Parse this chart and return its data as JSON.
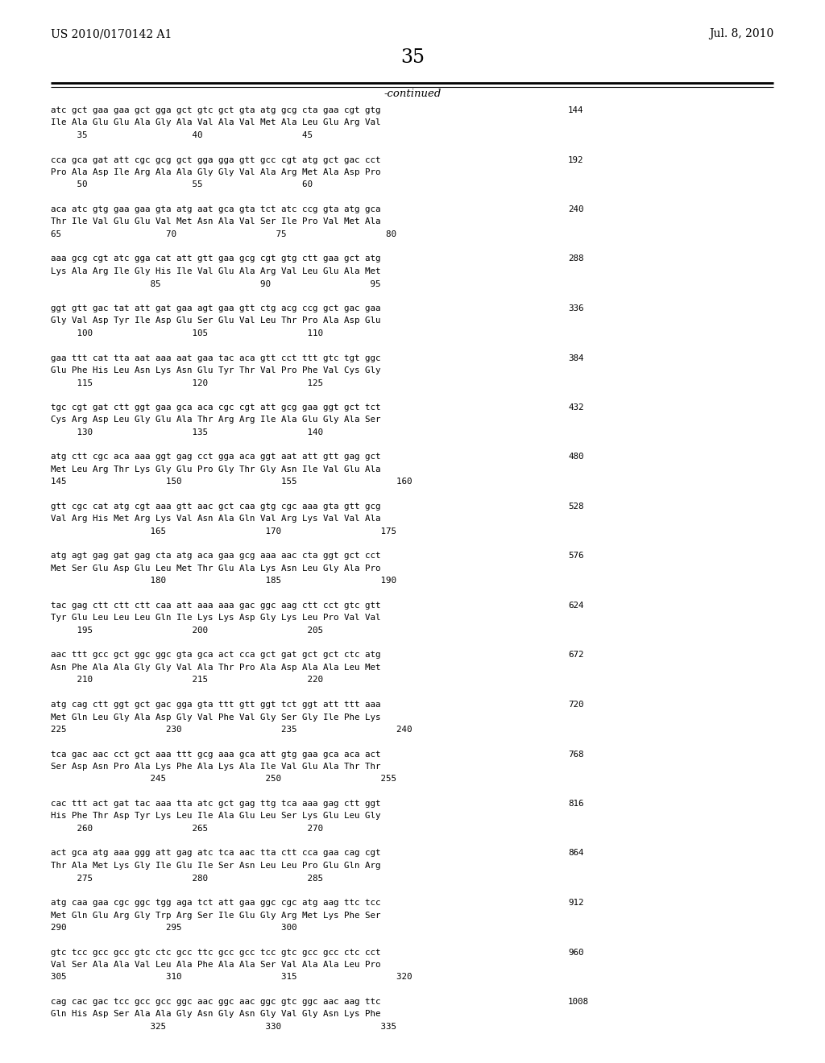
{
  "header_left": "US 2010/0170142 A1",
  "header_right": "Jul. 8, 2010",
  "page_number": "35",
  "continued_label": "-continued",
  "background_color": "#ffffff",
  "text_color": "#000000",
  "sequences": [
    {
      "dna": "atc gct gaa gaa gct gga gct gtc gct gta atg gcg cta gaa cgt gtg",
      "aa": "Ile Ala Glu Glu Ala Gly Ala Val Ala Val Met Ala Leu Glu Arg Val",
      "nums": "     35                    40                   45",
      "num_right": "144"
    },
    {
      "dna": "cca gca gat att cgc gcg gct gga gga gtt gcc cgt atg gct gac cct",
      "aa": "Pro Ala Asp Ile Arg Ala Ala Gly Gly Val Ala Arg Met Ala Asp Pro",
      "nums": "     50                    55                   60",
      "num_right": "192"
    },
    {
      "dna": "aca atc gtg gaa gaa gta atg aat gca gta tct atc ccg gta atg gca",
      "aa": "Thr Ile Val Glu Glu Val Met Asn Ala Val Ser Ile Pro Val Met Ala",
      "nums": "65                    70                   75                   80",
      "num_right": "240"
    },
    {
      "dna": "aaa gcg cgt atc gga cat att gtt gaa gcg cgt gtg ctt gaa gct atg",
      "aa": "Lys Ala Arg Ile Gly His Ile Val Glu Ala Arg Val Leu Glu Ala Met",
      "nums": "                   85                   90                   95",
      "num_right": "288"
    },
    {
      "dna": "ggt gtt gac tat att gat gaa agt gaa gtt ctg acg ccg gct gac gaa",
      "aa": "Gly Val Asp Tyr Ile Asp Glu Ser Glu Val Leu Thr Pro Ala Asp Glu",
      "nums": "     100                   105                   110",
      "num_right": "336"
    },
    {
      "dna": "gaa ttt cat tta aat aaa aat gaa tac aca gtt cct ttt gtc tgt ggc",
      "aa": "Glu Phe His Leu Asn Lys Asn Glu Tyr Thr Val Pro Phe Val Cys Gly",
      "nums": "     115                   120                   125",
      "num_right": "384"
    },
    {
      "dna": "tgc cgt gat ctt ggt gaa gca aca cgc cgt att gcg gaa ggt gct tct",
      "aa": "Cys Arg Asp Leu Gly Glu Ala Thr Arg Arg Ile Ala Glu Gly Ala Ser",
      "nums": "     130                   135                   140",
      "num_right": "432"
    },
    {
      "dna": "atg ctt cgc aca aaa ggt gag cct gga aca ggt aat att gtt gag gct",
      "aa": "Met Leu Arg Thr Lys Gly Glu Pro Gly Thr Gly Asn Ile Val Glu Ala",
      "nums": "145                   150                   155                   160",
      "num_right": "480"
    },
    {
      "dna": "gtt cgc cat atg cgt aaa gtt aac gct caa gtg cgc aaa gta gtt gcg",
      "aa": "Val Arg His Met Arg Lys Val Asn Ala Gln Val Arg Lys Val Val Ala",
      "nums": "                   165                   170                   175",
      "num_right": "528"
    },
    {
      "dna": "atg agt gag gat gag cta atg aca gaa gcg aaa aac cta ggt gct cct",
      "aa": "Met Ser Glu Asp Glu Leu Met Thr Glu Ala Lys Asn Leu Gly Ala Pro",
      "nums": "                   180                   185                   190",
      "num_right": "576"
    },
    {
      "dna": "tac gag ctt ctt ctt caa att aaa aaa gac ggc aag ctt cct gtc gtt",
      "aa": "Tyr Glu Leu Leu Leu Gln Ile Lys Lys Asp Gly Lys Leu Pro Val Val",
      "nums": "     195                   200                   205",
      "num_right": "624"
    },
    {
      "dna": "aac ttt gcc gct ggc ggc gta gca act cca gct gat gct gct ctc atg",
      "aa": "Asn Phe Ala Ala Gly Gly Val Ala Thr Pro Ala Asp Ala Ala Leu Met",
      "nums": "     210                   215                   220",
      "num_right": "672"
    },
    {
      "dna": "atg cag ctt ggt gct gac gga gta ttt gtt ggt tct ggt att ttt aaa",
      "aa": "Met Gln Leu Gly Ala Asp Gly Val Phe Val Gly Ser Gly Ile Phe Lys",
      "nums": "225                   230                   235                   240",
      "num_right": "720"
    },
    {
      "dna": "tca gac aac cct gct aaa ttt gcg aaa gca att gtg gaa gca aca act",
      "aa": "Ser Asp Asn Pro Ala Lys Phe Ala Lys Ala Ile Val Glu Ala Thr Thr",
      "nums": "                   245                   250                   255",
      "num_right": "768"
    },
    {
      "dna": "cac ttt act gat tac aaa tta atc gct gag ttg tca aaa gag ctt ggt",
      "aa": "His Phe Thr Asp Tyr Lys Leu Ile Ala Glu Leu Ser Lys Glu Leu Gly",
      "nums": "     260                   265                   270",
      "num_right": "816"
    },
    {
      "dna": "act gca atg aaa ggg att gag atc tca aac tta ctt cca gaa cag cgt",
      "aa": "Thr Ala Met Lys Gly Ile Glu Ile Ser Asn Leu Leu Pro Glu Gln Arg",
      "nums": "     275                   280                   285",
      "num_right": "864"
    },
    {
      "dna": "atg caa gaa cgc ggc tgg aga tct att gaa ggc cgc atg aag ttc tcc",
      "aa": "Met Gln Glu Arg Gly Trp Arg Ser Ile Glu Gly Arg Met Lys Phe Ser",
      "nums": "290                   295                   300",
      "num_right": "912"
    },
    {
      "dna": "gtc tcc gcc gcc gtc ctc gcc ttc gcc gcc tcc gtc gcc gcc ctc cct",
      "aa": "Val Ser Ala Ala Val Leu Ala Phe Ala Ala Ser Val Ala Ala Leu Pro",
      "nums": "305                   310                   315                   320",
      "num_right": "960"
    },
    {
      "dna": "cag cac gac tcc gcc gcc ggc aac ggc aac ggc gtc ggc aac aag ttc",
      "aa": "Gln His Asp Ser Ala Ala Gly Asn Gly Asn Gly Val Gly Asn Lys Phe",
      "nums": "                   325                   330                   335",
      "num_right": "1008"
    }
  ]
}
